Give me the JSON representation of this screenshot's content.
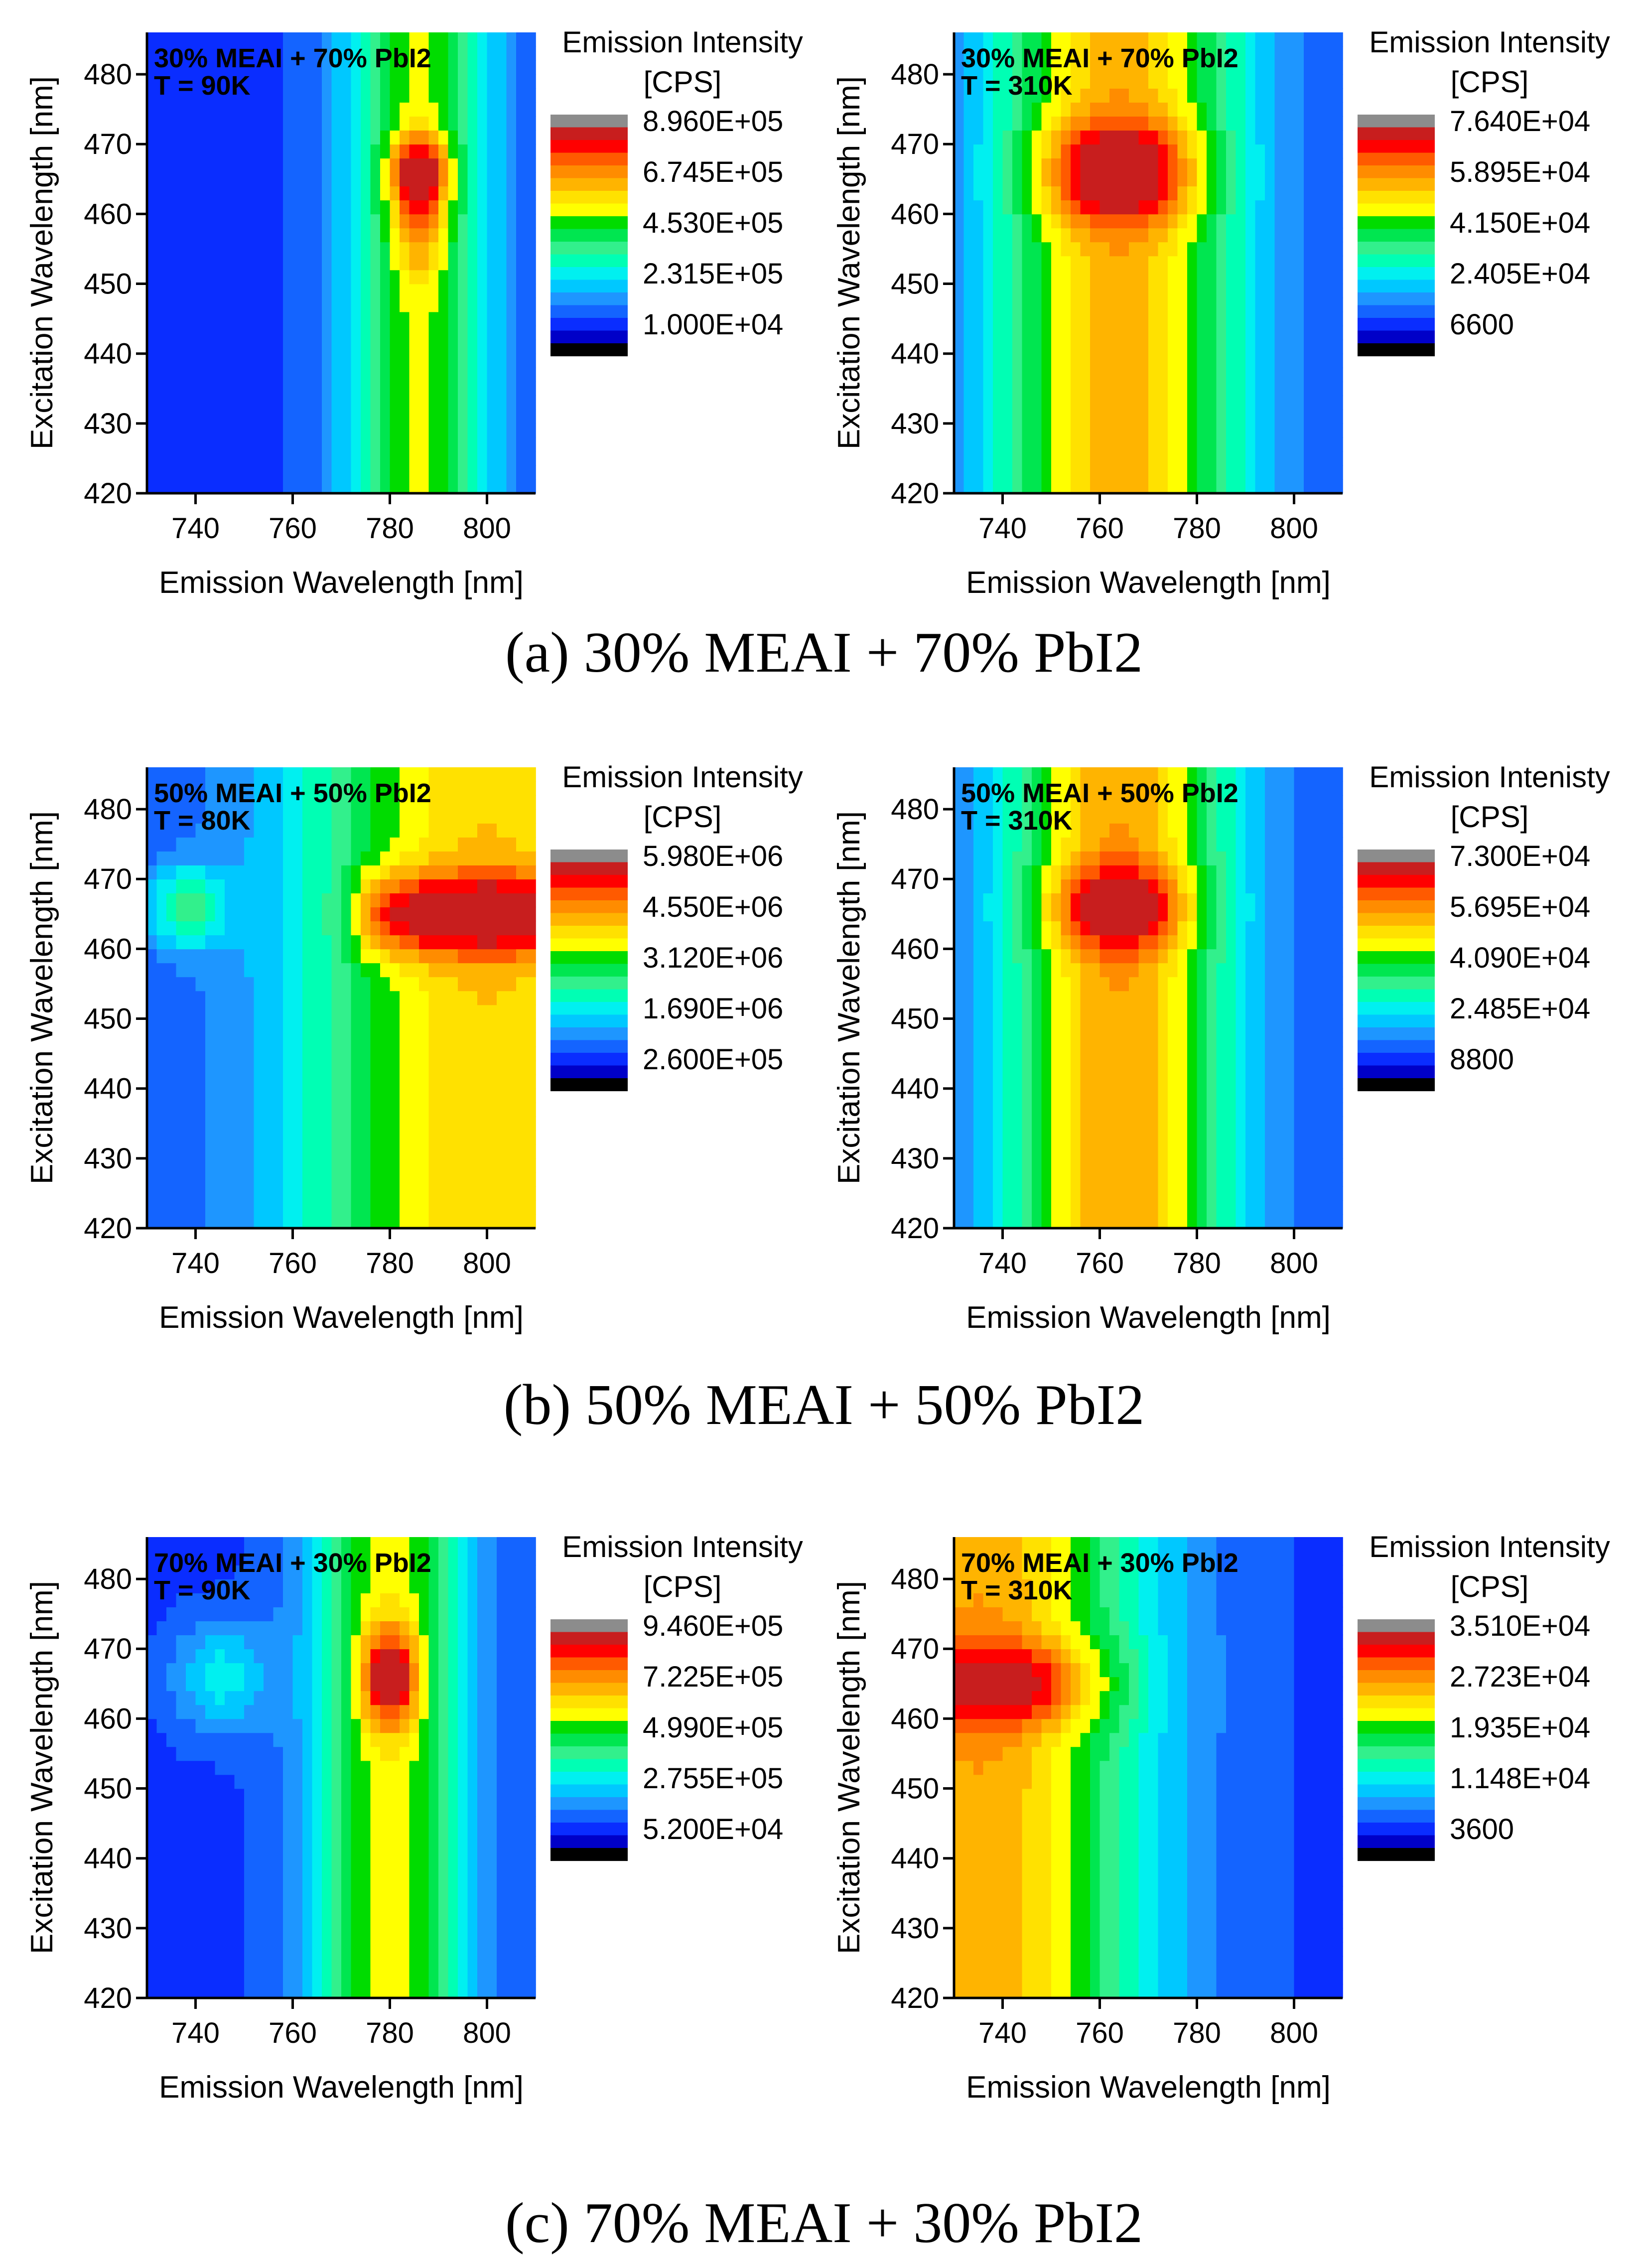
{
  "figure": {
    "captions": [
      "(a) 30% MEAI + 70% PbI2",
      "(b) 50% MEAI + 50% PbI2",
      "(c) 70% MEAI + 30% PbI2"
    ]
  },
  "palette": [
    "#000000",
    "#0000c8",
    "#0a2dff",
    "#1464ff",
    "#1e96ff",
    "#00c8ff",
    "#00f0f0",
    "#00ffb4",
    "#32f08c",
    "#00e650",
    "#00dc00",
    "#ffff00",
    "#ffe100",
    "#ffb400",
    "#ff8c00",
    "#ff5a00",
    "#ff0000",
    "#c81e1e",
    "#8c8c8c"
  ],
  "chart_data": [
    {
      "type": "heatmap",
      "row": 0,
      "col": 0,
      "title": "30% MEAI + 70% PbI2",
      "subtitle": "T = 90K",
      "xlabel": "Emission Wavelength [nm]",
      "ylabel": "Excitation Wavelength [nm]",
      "xlim": [
        730,
        810
      ],
      "ylim": [
        420,
        486
      ],
      "xticks": [
        740,
        760,
        780,
        800
      ],
      "yticks": [
        420,
        430,
        440,
        450,
        460,
        470,
        480
      ],
      "colorbar": {
        "title": [
          "Emission Intensity",
          "[CPS]"
        ],
        "labels": [
          "8.960E+05",
          "6.745E+05",
          "4.530E+05",
          "2.315E+05",
          "1.000E+04"
        ],
        "min": 10000,
        "max": 896000
      },
      "features": [
        {
          "kind": "column",
          "x": 786,
          "w": 15,
          "amp": 0.5
        },
        {
          "kind": "spot",
          "x": 786,
          "y": 466,
          "rx": 6,
          "ry": 5,
          "amp": 0.45
        },
        {
          "kind": "spot",
          "x": 786,
          "y": 458,
          "rx": 5,
          "ry": 7,
          "amp": 0.2
        }
      ]
    },
    {
      "type": "heatmap",
      "row": 0,
      "col": 1,
      "title": "30% MEAI + 70% PbI2",
      "subtitle": "T = 310K",
      "xlabel": "Emission Wavelength [nm]",
      "ylabel": "Excitation Wavelength [nm]",
      "xlim": [
        730,
        810
      ],
      "ylim": [
        420,
        486
      ],
      "xticks": [
        740,
        760,
        780,
        800
      ],
      "yticks": [
        420,
        430,
        440,
        450,
        460,
        470,
        480
      ],
      "colorbar": {
        "title": [
          "Emission Intensity",
          "[CPS]"
        ],
        "labels": [
          "7.640E+04",
          "5.895E+04",
          "4.150E+04",
          "2.405E+04",
          "6600"
        ],
        "min": 6600,
        "max": 76400
      },
      "features": [
        {
          "kind": "column",
          "x": 764,
          "w": 26,
          "amp": 0.64
        },
        {
          "kind": "spot",
          "x": 764,
          "y": 466,
          "rx": 16,
          "ry": 7,
          "amp": 0.38
        }
      ]
    },
    {
      "type": "heatmap",
      "row": 1,
      "col": 0,
      "title": "50% MEAI + 50% PbI2",
      "subtitle": "T = 80K",
      "xlabel": "Emission Wavelength [nm]",
      "ylabel": "Excitation Wavelength [nm]",
      "xlim": [
        730,
        810
      ],
      "ylim": [
        420,
        486
      ],
      "xticks": [
        740,
        760,
        780,
        800
      ],
      "yticks": [
        420,
        430,
        440,
        450,
        460,
        470,
        480
      ],
      "colorbar": {
        "title": [
          "Emission Intensity",
          "[CPS]"
        ],
        "labels": [
          "5.980E+06",
          "4.550E+06",
          "3.120E+06",
          "1.690E+06",
          "2.600E+05"
        ],
        "min": 260000,
        "max": 5980000
      },
      "features": [
        {
          "kind": "column",
          "x": 800,
          "w": 40,
          "amp": 0.6
        },
        {
          "kind": "band",
          "x0": 774,
          "y": 465,
          "w": 6,
          "amp": 0.38
        },
        {
          "kind": "spot",
          "x": 738,
          "y": 466,
          "rx": 8,
          "ry": 6,
          "amp": 0.3
        }
      ]
    },
    {
      "type": "heatmap",
      "row": 1,
      "col": 1,
      "title": "50% MEAI + 50% PbI2",
      "subtitle": "T = 310K",
      "xlabel": "Emission Wavelength [nm]",
      "ylabel": "Excitation Wavelength [nm]",
      "xlim": [
        730,
        810
      ],
      "ylim": [
        420,
        486
      ],
      "xticks": [
        740,
        760,
        780,
        800
      ],
      "yticks": [
        420,
        430,
        440,
        450,
        460,
        470,
        480
      ],
      "colorbar": {
        "title": [
          "Emission Intenisty",
          "[CPS]"
        ],
        "labels": [
          "7.300E+04",
          "5.695E+04",
          "4.090E+04",
          "2.485E+04",
          "8800"
        ],
        "min": 8800,
        "max": 73000
      },
      "features": [
        {
          "kind": "column",
          "x": 764,
          "w": 24,
          "amp": 0.66
        },
        {
          "kind": "spot",
          "x": 764,
          "y": 466,
          "rx": 14,
          "ry": 6,
          "amp": 0.34
        }
      ]
    },
    {
      "type": "heatmap",
      "row": 2,
      "col": 0,
      "title": "70% MEAI + 30% PbI2",
      "subtitle": "T = 90K",
      "xlabel": "Emission Wavelength [nm]",
      "ylabel": "Excitation Wavelength [nm]",
      "xlim": [
        730,
        810
      ],
      "ylim": [
        420,
        486
      ],
      "xticks": [
        740,
        760,
        780,
        800
      ],
      "yticks": [
        420,
        430,
        440,
        450,
        460,
        470,
        480
      ],
      "colorbar": {
        "title": [
          "Emission Intensity",
          "[CPS]"
        ],
        "labels": [
          "9.460E+05",
          "7.225E+05",
          "4.990E+05",
          "2.755E+05",
          "5.200E+04"
        ],
        "min": 52000,
        "max": 946000
      },
      "features": [
        {
          "kind": "column",
          "x": 780,
          "w": 16,
          "amp": 0.52
        },
        {
          "kind": "spot",
          "x": 780,
          "y": 466,
          "rx": 6,
          "ry": 7,
          "amp": 0.45
        },
        {
          "kind": "spot",
          "x": 745,
          "y": 466,
          "rx": 10,
          "ry": 8,
          "amp": 0.22
        }
      ]
    },
    {
      "type": "heatmap",
      "row": 2,
      "col": 1,
      "title": "70% MEAI + 30% PbI2",
      "subtitle": "T = 310K",
      "xlabel": "Emission Wavelength [nm]",
      "ylabel": "Excitation Wavelength [nm]",
      "xlim": [
        730,
        810
      ],
      "ylim": [
        420,
        486
      ],
      "xticks": [
        740,
        760,
        780,
        800
      ],
      "yticks": [
        420,
        430,
        440,
        450,
        460,
        470,
        480
      ],
      "colorbar": {
        "title": [
          "Emission Intensity",
          "[CPS]"
        ],
        "labels": [
          "3.510E+04",
          "2.723E+04",
          "1.935E+04",
          "1.148E+04",
          "3600"
        ],
        "min": 3600,
        "max": 35100
      },
      "features": [
        {
          "kind": "column",
          "x": 735,
          "w": 34,
          "amp": 0.66
        },
        {
          "kind": "spot",
          "x": 742,
          "y": 465,
          "rx": 20,
          "ry": 6,
          "amp": 0.3
        }
      ]
    }
  ]
}
